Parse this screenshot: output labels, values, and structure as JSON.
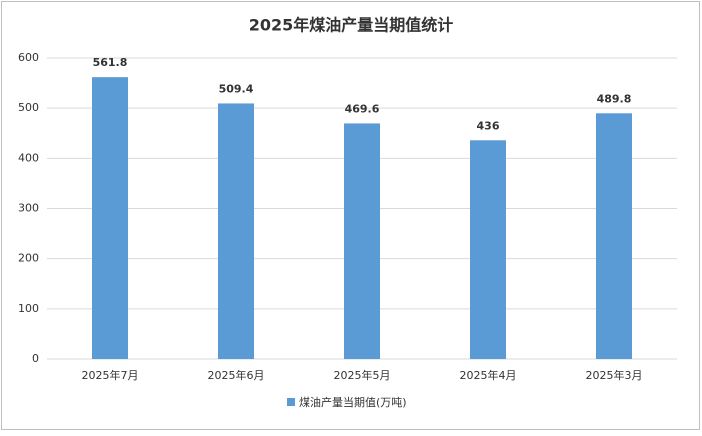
{
  "chart_data": {
    "type": "bar",
    "title": "2025年煤油产量当期值统计",
    "categories": [
      "2025年7月",
      "2025年6月",
      "2025年5月",
      "2025年4月",
      "2025年3月"
    ],
    "series": [
      {
        "name": "煤油产量当期值(万吨)",
        "color": "#5b9bd5",
        "values": [
          561.8,
          509.4,
          469.6,
          436,
          489.8
        ]
      }
    ],
    "ylim": [
      0,
      600
    ],
    "yticks": [
      0,
      100,
      200,
      300,
      400,
      500,
      600
    ],
    "grid": true,
    "legend": "bottom"
  }
}
